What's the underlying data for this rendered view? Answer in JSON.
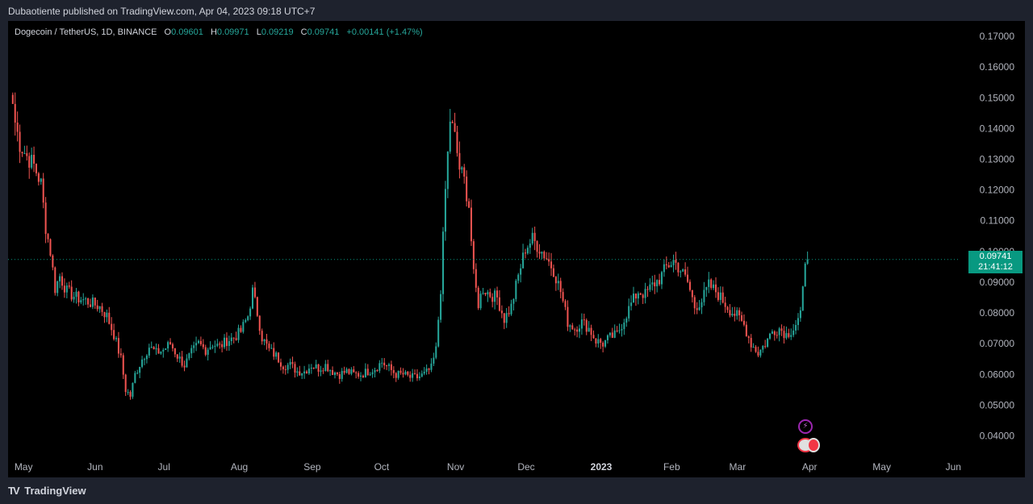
{
  "header": {
    "published": "Dubaotiente published on TradingView.com, Apr 04, 2023 09:18 UTC+7"
  },
  "legend": {
    "symbol": "Dogecoin / TetherUS, 1D, BINANCE",
    "open_key": "O",
    "open": "0.09601",
    "high_key": "H",
    "high": "0.09971",
    "low_key": "L",
    "low": "0.09219",
    "close_key": "C",
    "close": "0.09741",
    "change": "+0.00141 (+1.47%)"
  },
  "price_tag": {
    "price": "0.09741",
    "countdown": "21:41:12"
  },
  "footer": {
    "brand": "TradingView",
    "logo_glyph": "TV"
  },
  "colors": {
    "up": "#26a69a",
    "down": "#ef5350",
    "background": "#000000",
    "last_price": "#089981"
  },
  "icons": {
    "event1": "lightning-event-icon",
    "event2": "us-flag-event-icon"
  },
  "chart_data": {
    "type": "candlestick",
    "title": "Dogecoin / TetherUS, 1D, BINANCE",
    "ylim": [
      0.032,
      0.175
    ],
    "y_ticks": [
      "0.04000",
      "0.05000",
      "0.06000",
      "0.07000",
      "0.08000",
      "0.09000",
      "0.10000",
      "0.11000",
      "0.12000",
      "0.13000",
      "0.14000",
      "0.15000",
      "0.16000",
      "0.17000"
    ],
    "x_ticks": [
      {
        "label": "May",
        "day": 0
      },
      {
        "label": "Jun",
        "day": 31
      },
      {
        "label": "Jul",
        "day": 61
      },
      {
        "label": "Aug",
        "day": 92
      },
      {
        "label": "Sep",
        "day": 123
      },
      {
        "label": "Oct",
        "day": 153
      },
      {
        "label": "Nov",
        "day": 184
      },
      {
        "label": "Dec",
        "day": 214
      },
      {
        "label": "2023",
        "day": 245,
        "bold": true
      },
      {
        "label": "Feb",
        "day": 276
      },
      {
        "label": "Mar",
        "day": 304
      },
      {
        "label": "Apr",
        "day": 335
      },
      {
        "label": "May",
        "day": 365
      },
      {
        "label": "Jun",
        "day": 396
      }
    ],
    "x_range_days": [
      -2,
      403
    ],
    "last_price": 0.09741,
    "close_path": [
      [
        0,
        0.148
      ],
      [
        1,
        0.142
      ],
      [
        3,
        0.135
      ],
      [
        6,
        0.131
      ],
      [
        9,
        0.128
      ],
      [
        12,
        0.122
      ],
      [
        14,
        0.108
      ],
      [
        16,
        0.1
      ],
      [
        18,
        0.088
      ],
      [
        20,
        0.092
      ],
      [
        23,
        0.087
      ],
      [
        27,
        0.085
      ],
      [
        31,
        0.084
      ],
      [
        34,
        0.083
      ],
      [
        37,
        0.082
      ],
      [
        40,
        0.079
      ],
      [
        43,
        0.073
      ],
      [
        46,
        0.065
      ],
      [
        48,
        0.055
      ],
      [
        50,
        0.053
      ],
      [
        52,
        0.06
      ],
      [
        55,
        0.065
      ],
      [
        58,
        0.069
      ],
      [
        61,
        0.067
      ],
      [
        64,
        0.068
      ],
      [
        67,
        0.07
      ],
      [
        70,
        0.066
      ],
      [
        73,
        0.063
      ],
      [
        76,
        0.067
      ],
      [
        79,
        0.07
      ],
      [
        82,
        0.068
      ],
      [
        85,
        0.07
      ],
      [
        88,
        0.069
      ],
      [
        91,
        0.071
      ],
      [
        94,
        0.072
      ],
      [
        97,
        0.074
      ],
      [
        100,
        0.079
      ],
      [
        102,
        0.087
      ],
      [
        104,
        0.08
      ],
      [
        106,
        0.072
      ],
      [
        109,
        0.068
      ],
      [
        112,
        0.066
      ],
      [
        115,
        0.063
      ],
      [
        118,
        0.063
      ],
      [
        121,
        0.061
      ],
      [
        124,
        0.061
      ],
      [
        127,
        0.063
      ],
      [
        130,
        0.062
      ],
      [
        133,
        0.063
      ],
      [
        136,
        0.061
      ],
      [
        139,
        0.06
      ],
      [
        142,
        0.061
      ],
      [
        145,
        0.06
      ],
      [
        148,
        0.06
      ],
      [
        151,
        0.061
      ],
      [
        154,
        0.062
      ],
      [
        157,
        0.064
      ],
      [
        160,
        0.062
      ],
      [
        163,
        0.06
      ],
      [
        166,
        0.06
      ],
      [
        169,
        0.059
      ],
      [
        172,
        0.059
      ],
      [
        175,
        0.06
      ],
      [
        178,
        0.062
      ],
      [
        180,
        0.068
      ],
      [
        182,
        0.088
      ],
      [
        184,
        0.12
      ],
      [
        186,
        0.143
      ],
      [
        188,
        0.137
      ],
      [
        190,
        0.127
      ],
      [
        192,
        0.123
      ],
      [
        194,
        0.115
      ],
      [
        196,
        0.092
      ],
      [
        198,
        0.083
      ],
      [
        200,
        0.088
      ],
      [
        203,
        0.086
      ],
      [
        206,
        0.085
      ],
      [
        209,
        0.078
      ],
      [
        212,
        0.082
      ],
      [
        215,
        0.092
      ],
      [
        218,
        0.101
      ],
      [
        221,
        0.104
      ],
      [
        224,
        0.101
      ],
      [
        227,
        0.098
      ],
      [
        230,
        0.094
      ],
      [
        233,
        0.087
      ],
      [
        236,
        0.077
      ],
      [
        239,
        0.075
      ],
      [
        242,
        0.077
      ],
      [
        245,
        0.075
      ],
      [
        248,
        0.071
      ],
      [
        251,
        0.07
      ],
      [
        254,
        0.072
      ],
      [
        257,
        0.073
      ],
      [
        260,
        0.078
      ],
      [
        263,
        0.083
      ],
      [
        266,
        0.087
      ],
      [
        269,
        0.086
      ],
      [
        272,
        0.089
      ],
      [
        275,
        0.091
      ],
      [
        278,
        0.095
      ],
      [
        281,
        0.097
      ],
      [
        284,
        0.094
      ],
      [
        287,
        0.09
      ],
      [
        290,
        0.082
      ],
      [
        293,
        0.084
      ],
      [
        296,
        0.089
      ],
      [
        299,
        0.087
      ],
      [
        302,
        0.084
      ],
      [
        305,
        0.081
      ],
      [
        308,
        0.079
      ],
      [
        311,
        0.076
      ],
      [
        314,
        0.07
      ],
      [
        317,
        0.067
      ],
      [
        320,
        0.07
      ],
      [
        323,
        0.074
      ],
      [
        326,
        0.075
      ],
      [
        329,
        0.073
      ],
      [
        332,
        0.075
      ],
      [
        335,
        0.079
      ],
      [
        336,
        0.087
      ],
      [
        337,
        0.09601
      ],
      [
        338,
        0.09741
      ]
    ]
  }
}
